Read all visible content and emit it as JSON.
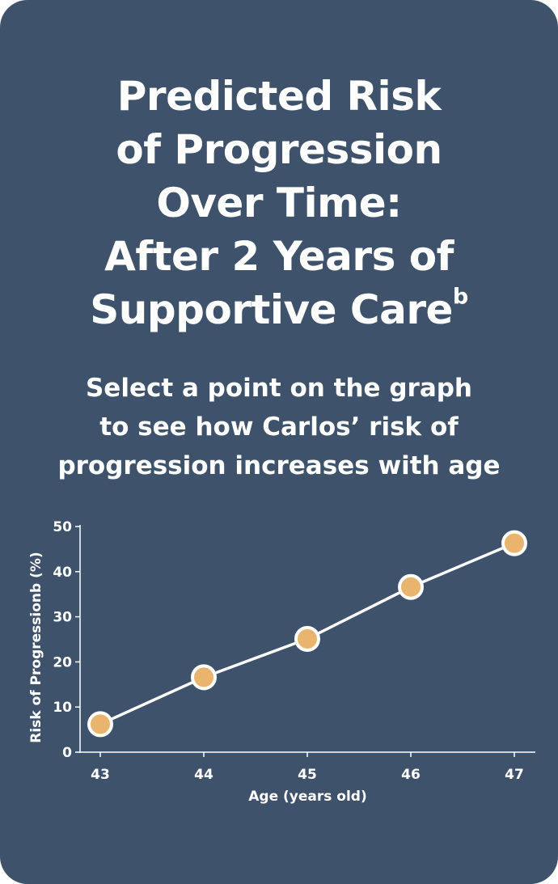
{
  "title": {
    "lines": [
      "Predicted Risk",
      "of Progression",
      "Over Time:",
      "After 2 Years of",
      "Supportive Care"
    ],
    "superscript": "b"
  },
  "subtitle": {
    "lines": [
      "Select a point on the graph",
      "to see how Carlos’ risk of",
      "progression increases with age"
    ]
  },
  "colors": {
    "card_background": "#3e536b",
    "text": "#ffffff",
    "point_fill": "#e8b46e",
    "point_stroke": "#ffffff",
    "line": "#ffffff"
  },
  "chart_data": {
    "type": "line",
    "x": [
      43,
      44,
      45,
      46,
      47
    ],
    "series": [
      {
        "values": [
          6.2,
          16.6,
          25.1,
          36.6,
          46.3
        ]
      }
    ],
    "xlabel": "Age (years old)",
    "ylabel": "Risk of Progressionb (%)",
    "xticks": [
      "43",
      "44",
      "45",
      "46",
      "47"
    ],
    "yticks": [
      "0",
      "10",
      "20",
      "30",
      "40",
      "50"
    ],
    "xlim": [
      43,
      47
    ],
    "ylim": [
      0,
      50
    ],
    "grid": false
  }
}
